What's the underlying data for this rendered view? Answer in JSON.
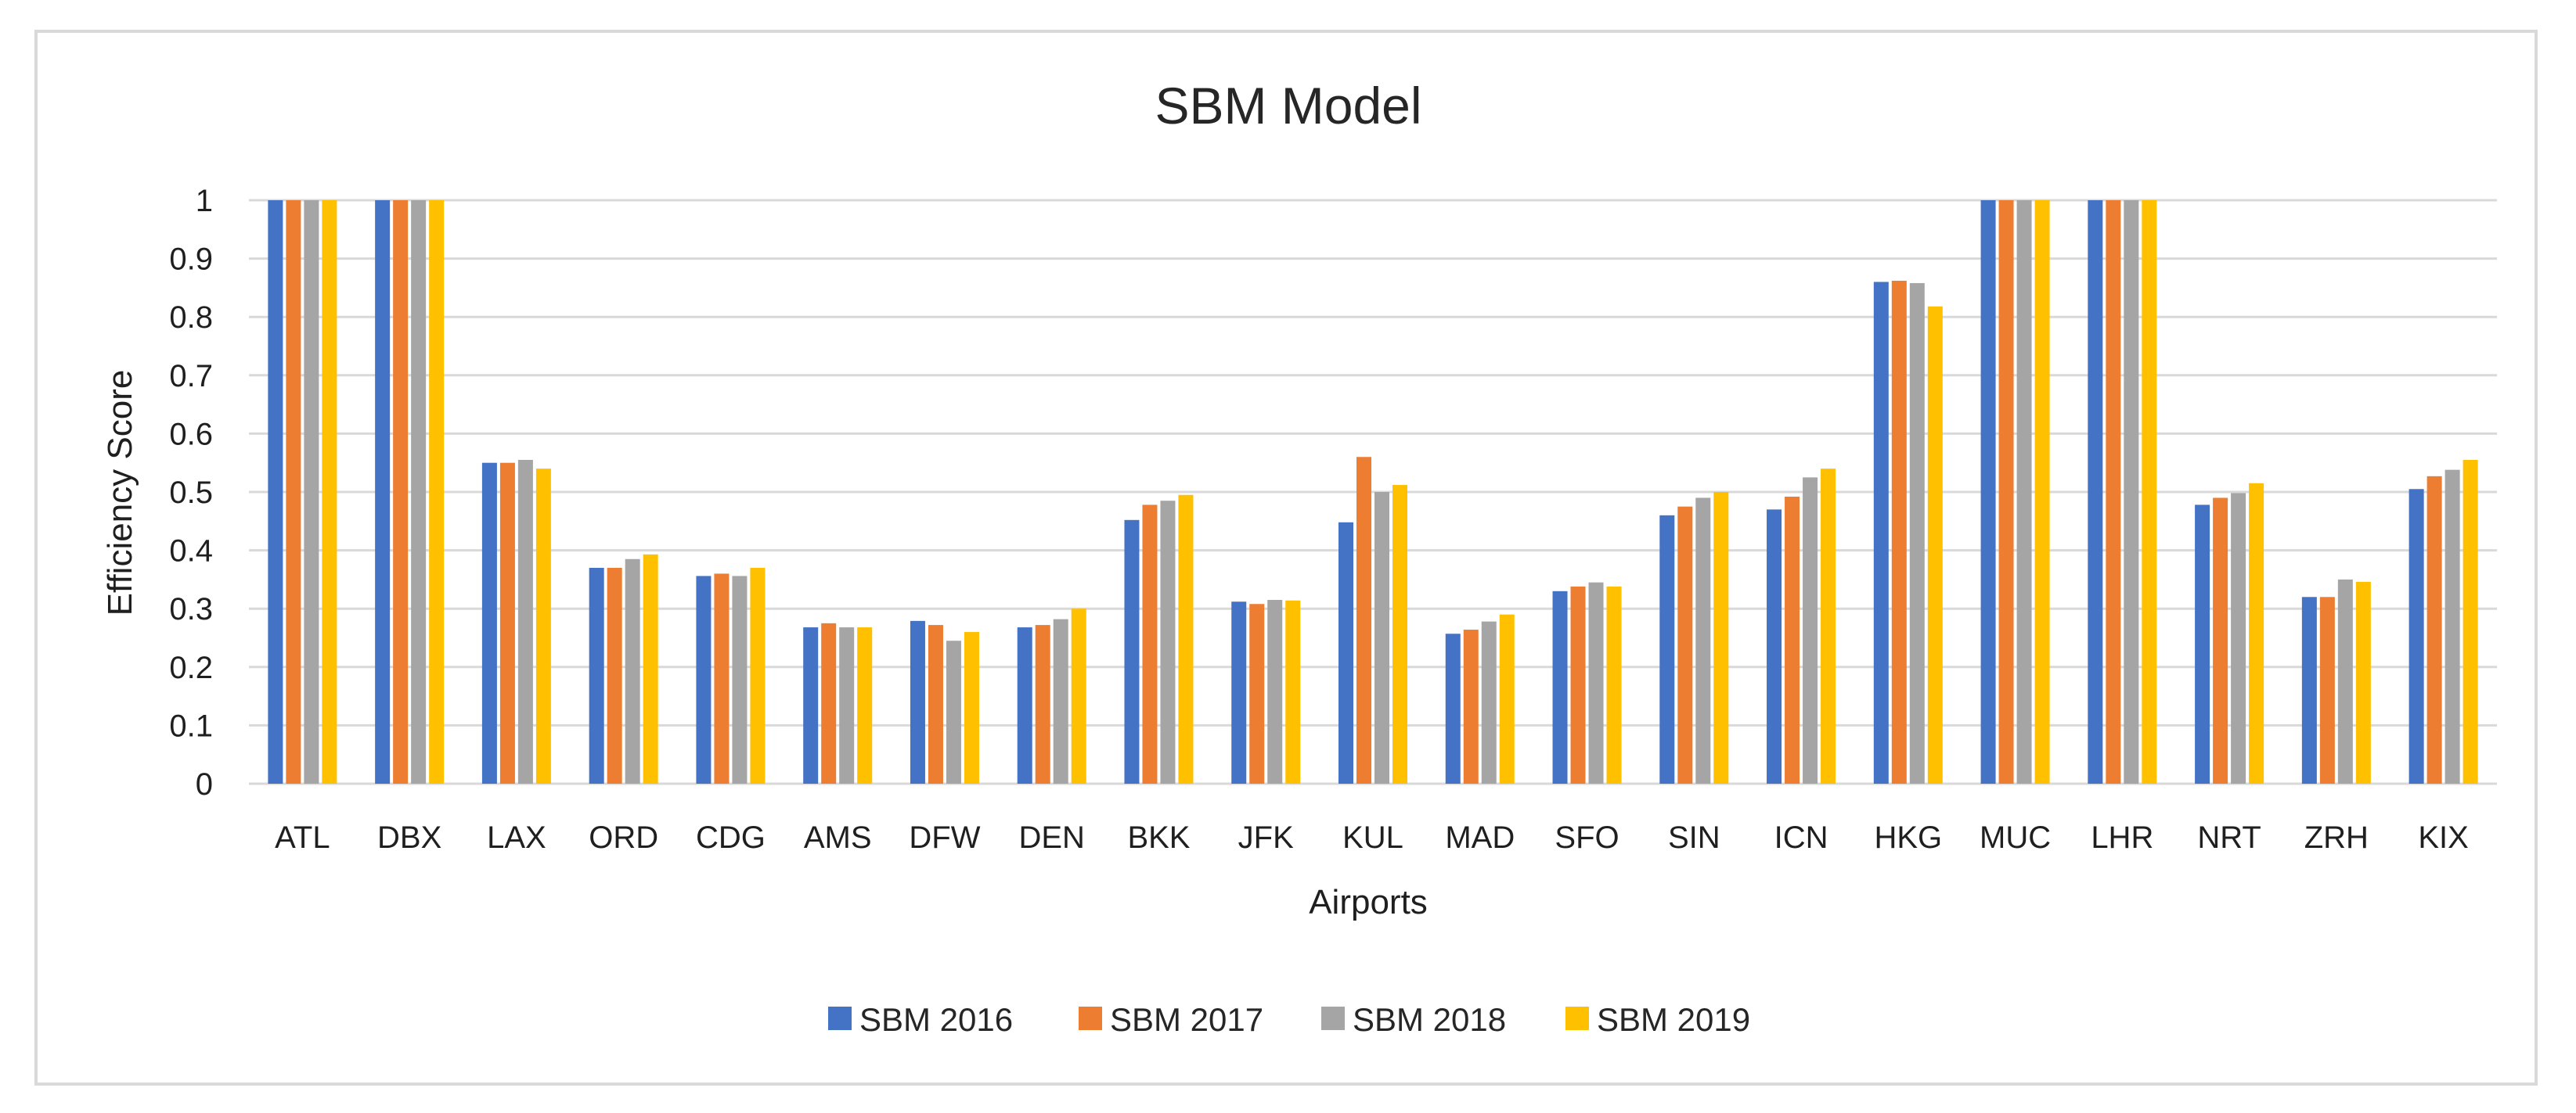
{
  "chart_data": {
    "type": "bar",
    "title": "SBM Model",
    "xlabel": "Airports",
    "ylabel": "Efficiency Score",
    "ylim": [
      0,
      1
    ],
    "yticks": [
      "0",
      "0.1",
      "0.2",
      "0.3",
      "0.4",
      "0.5",
      "0.6",
      "0.7",
      "0.8",
      "0.9",
      "1"
    ],
    "grid": true,
    "legend_position": "bottom",
    "categories": [
      "ATL",
      "DBX",
      "LAX",
      "ORD",
      "CDG",
      "AMS",
      "DFW",
      "DEN",
      "BKK",
      "JFK",
      "KUL",
      "MAD",
      "SFO",
      "SIN",
      "ICN",
      "HKG",
      "MUC",
      "LHR",
      "NRT",
      "ZRH",
      "KIX"
    ],
    "series": [
      {
        "name": "SBM 2016",
        "color": "#4472c4",
        "values": [
          1,
          1,
          0.55,
          0.37,
          0.356,
          0.268,
          0.279,
          0.268,
          0.452,
          0.312,
          0.448,
          0.257,
          0.33,
          0.46,
          0.47,
          0.86,
          1,
          1,
          0.478,
          0.32,
          0.505
        ]
      },
      {
        "name": "SBM 2017",
        "color": "#ed7d31",
        "values": [
          1,
          1,
          0.55,
          0.37,
          0.36,
          0.275,
          0.272,
          0.272,
          0.478,
          0.308,
          0.56,
          0.264,
          0.338,
          0.475,
          0.492,
          0.862,
          1,
          1,
          0.49,
          0.32,
          0.527
        ]
      },
      {
        "name": "SBM 2018",
        "color": "#a5a5a5",
        "values": [
          1,
          1,
          0.555,
          0.385,
          0.356,
          0.268,
          0.245,
          0.282,
          0.485,
          0.315,
          0.5,
          0.278,
          0.345,
          0.49,
          0.525,
          0.858,
          1,
          1,
          0.498,
          0.35,
          0.538
        ]
      },
      {
        "name": "SBM 2019",
        "color": "#ffc000",
        "values": [
          1,
          1,
          0.54,
          0.393,
          0.37,
          0.268,
          0.26,
          0.3,
          0.495,
          0.314,
          0.512,
          0.29,
          0.338,
          0.5,
          0.54,
          0.818,
          1,
          1,
          0.515,
          0.346,
          0.555
        ]
      }
    ]
  }
}
